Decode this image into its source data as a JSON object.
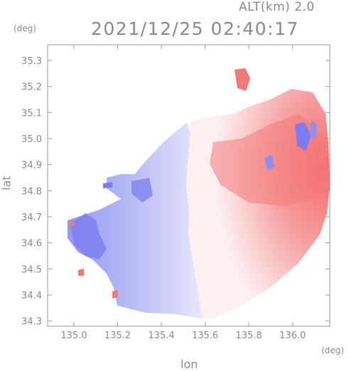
{
  "header": {
    "altitude_label": "ALT(km) 2.0",
    "timestamp": "2021/12/25 02:40:17"
  },
  "chart_data": {
    "type": "heatmap",
    "title": "2021/12/25 02:40:17",
    "subtitle": "ALT(km) 2.0",
    "xlabel": "lon",
    "ylabel": "lat",
    "x_unit": "(deg)",
    "y_unit": "(deg)",
    "xlim": [
      134.88,
      136.17
    ],
    "ylim": [
      34.28,
      35.36
    ],
    "x_ticks": [
      135.0,
      135.2,
      135.4,
      135.6,
      135.8,
      136.0
    ],
    "x_tick_labels": [
      "135.0",
      "135.2",
      "135.4",
      "135.6",
      "135.8",
      "136.0"
    ],
    "y_ticks": [
      34.3,
      34.4,
      34.5,
      34.6,
      34.7,
      34.8,
      34.9,
      35.0,
      35.1,
      35.2,
      35.3
    ],
    "y_tick_labels": [
      "34.3",
      "34.4",
      "34.5",
      "34.6",
      "34.7",
      "34.8",
      "34.9",
      "35.0",
      "35.1",
      "35.2",
      "35.3"
    ],
    "grid": false,
    "colors": {
      "approaching": "#7a7df0",
      "receding": "#f47a7a",
      "near_zero": "#f2f2ff"
    }
  }
}
